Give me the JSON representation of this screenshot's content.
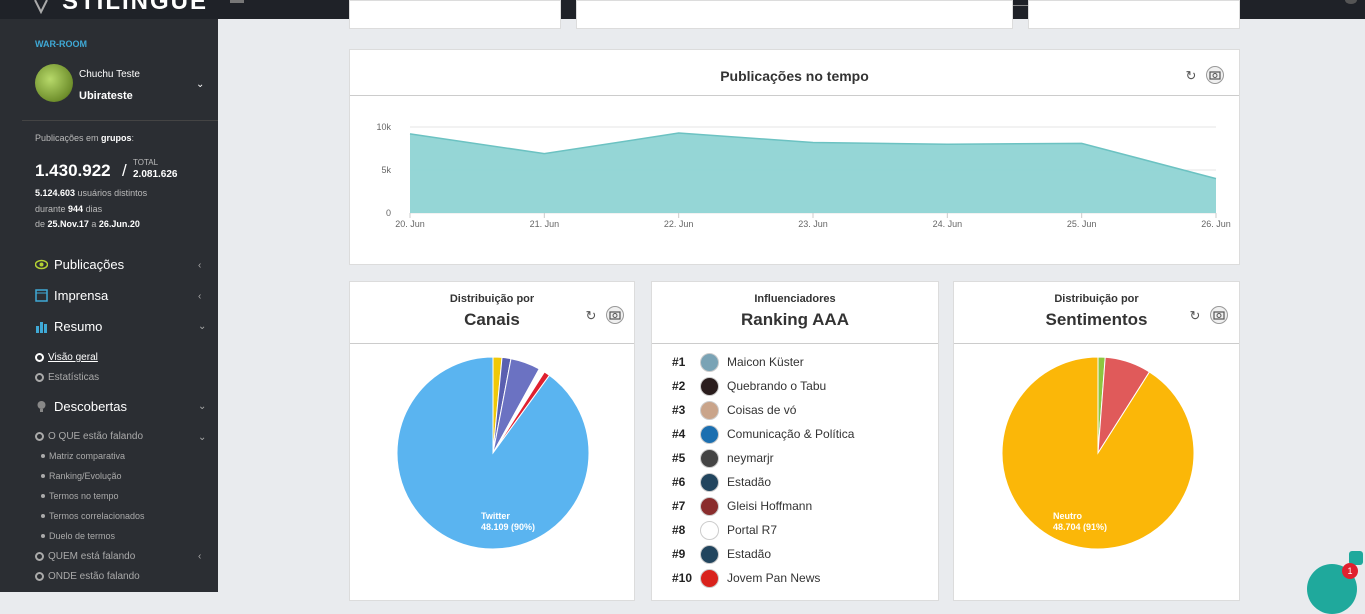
{
  "app": {
    "logo": "STILINGUE"
  },
  "sidebar": {
    "section": "WAR-ROOM",
    "user_name": "Chuchu Teste",
    "team_name": "Ubirateste",
    "pubs_prefix": "Publicações em ",
    "pubs_strong": "grupos",
    "pubs_suffix": ":",
    "count": "1.430.922",
    "slash": "/",
    "total_label": "TOTAL",
    "total": "2.081.626",
    "users_count": "5.124.603",
    "users_text": " usuários distintos",
    "during_text": "durante ",
    "days": "944",
    "days_text": " dias",
    "from_text": "de ",
    "date_from": "25.Nov.17",
    "a_text": " a ",
    "date_to": "26.Jun.20",
    "nav": {
      "publicacoes": "Publicações",
      "imprensa": "Imprensa",
      "resumo": "Resumo",
      "visao_geral": "Visão geral",
      "estatisticas": "Estatísticas",
      "descobertas": "Descobertas",
      "oque": "O QUE estão falando",
      "matriz": "Matriz comparativa",
      "ranking": "Ranking/Evolução",
      "termos_tempo": "Termos no tempo",
      "termos_corr": "Termos correlacionados",
      "duelo": "Duelo de termos",
      "quem": "QUEM está falando",
      "onde": "ONDE estão falando"
    }
  },
  "timeline": {
    "title": "Publicações no tempo"
  },
  "canais": {
    "subtitle": "Distribuição por",
    "title": "Canais",
    "label_name": "Twitter",
    "label_value": "48.109 (90%)"
  },
  "ranking": {
    "subtitle": "Influenciadores",
    "title": "Ranking AAA",
    "items": [
      {
        "rank": "#1",
        "name": "Maicon Küster",
        "color": "#7aa3b5"
      },
      {
        "rank": "#2",
        "name": "Quebrando o Tabu",
        "color": "#2a1d1d"
      },
      {
        "rank": "#3",
        "name": "Coisas de vó",
        "color": "#c9a48a"
      },
      {
        "rank": "#4",
        "name": "Comunicação & Política",
        "color": "#1c6fb0"
      },
      {
        "rank": "#5",
        "name": "neymarjr",
        "color": "#444444"
      },
      {
        "rank": "#6",
        "name": "Estadão",
        "color": "#22455e"
      },
      {
        "rank": "#7",
        "name": "Gleisi Hoffmann",
        "color": "#8a2d2d"
      },
      {
        "rank": "#8",
        "name": "Portal R7",
        "color": "#ffffff"
      },
      {
        "rank": "#9",
        "name": "Estadão",
        "color": "#22455e"
      },
      {
        "rank": "#10",
        "name": "Jovem Pan News",
        "color": "#d9221c"
      }
    ]
  },
  "sentimentos": {
    "subtitle": "Distribuição por",
    "title": "Sentimentos",
    "label_name": "Neutro",
    "label_value": "48.704 (91%)"
  },
  "chat": {
    "badge": "1"
  },
  "chart_data": [
    {
      "type": "area",
      "title": "Publicações no tempo",
      "x": [
        "20. Jun",
        "21. Jun",
        "22. Jun",
        "23. Jun",
        "24. Jun",
        "25. Jun",
        "26. Jun"
      ],
      "yticks": [
        "0",
        "5k",
        "10k"
      ],
      "ylim": [
        0,
        10000
      ],
      "values": [
        9200,
        6900,
        9300,
        8200,
        8000,
        8100,
        4000
      ],
      "color": "#8fd4d4"
    },
    {
      "type": "pie",
      "title": "Canais",
      "labels": [
        "Twitter",
        "",
        "",
        "",
        "",
        ""
      ],
      "values": [
        90,
        1,
        1,
        5,
        1.5,
        1.5
      ],
      "colors": [
        "#5ab4f0",
        "#e0202f",
        "#ffffff",
        "#6b72c2",
        "#5a5fb0",
        "#f0c808"
      ]
    },
    {
      "type": "pie",
      "title": "Sentimentos",
      "labels": [
        "Neutro",
        "",
        ""
      ],
      "values": [
        91,
        7.8,
        1.2
      ],
      "colors": [
        "#fbb708",
        "#e05a5a",
        "#8dc63f"
      ]
    }
  ]
}
